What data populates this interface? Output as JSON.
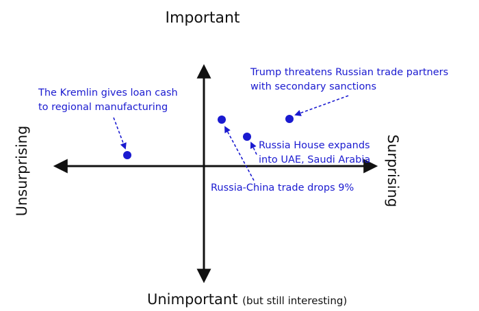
{
  "axes": {
    "top": "Important",
    "bottom": "Unimportant",
    "bottom_note": "(but still interesting)",
    "left": "Unsurprising",
    "right": "Surprising"
  },
  "colors": {
    "axis": "#111111",
    "accent": "#1a1ad0"
  },
  "items": [
    {
      "id": "kremlin",
      "lines": [
        "The Kremlin gives loan cash",
        "to regional manufacturing"
      ]
    },
    {
      "id": "trump",
      "lines": [
        "Trump threatens Russian trade partners",
        "with secondary sanctions"
      ]
    },
    {
      "id": "russia-house",
      "lines": [
        "Russia House expands",
        "into UAE, Saudi Arabia"
      ]
    },
    {
      "id": "china",
      "lines": [
        "Russia-China trade drops 9%"
      ]
    }
  ]
}
